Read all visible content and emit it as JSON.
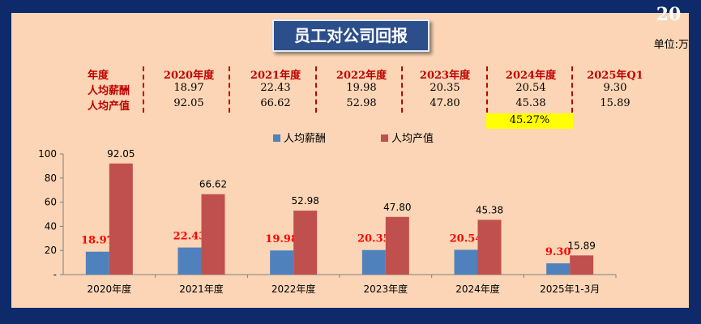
{
  "page_number": "20",
  "title": "员工对公司回报",
  "unit_label": "单位:万",
  "table": {
    "corner_label": "年度",
    "columns": [
      "2020年度",
      "2021年度",
      "2022年度",
      "2023年度",
      "2024年度",
      "2025年Q1"
    ],
    "rows": [
      {
        "label": "人均薪酬",
        "values": [
          "18.97",
          "22.43",
          "19.98",
          "20.35",
          "20.54",
          "9.30"
        ]
      },
      {
        "label": "人均产值",
        "values": [
          "92.05",
          "66.62",
          "52.98",
          "47.80",
          "45.38",
          "15.89"
        ]
      }
    ],
    "highlight_value": "45.27%"
  },
  "colors": {
    "background": "#0f2a6b",
    "panel": "#fbd5b5",
    "salary": "#4f81bd",
    "output": "#c0504d",
    "salary_label": "#ff0000",
    "highlight": "#ffff00"
  },
  "chart_data": {
    "type": "bar",
    "categories": [
      "2020年度",
      "2021年度",
      "2022年度",
      "2023年度",
      "2024年度",
      "2025年1-3月"
    ],
    "series": [
      {
        "name": "人均薪酬",
        "values": [
          18.97,
          22.43,
          19.98,
          20.35,
          20.54,
          9.3
        ],
        "labels": [
          "18.97",
          "22.43",
          "19.98",
          "20.35",
          "20.54",
          "9.30"
        ]
      },
      {
        "name": "人均产值",
        "values": [
          92.05,
          66.62,
          52.98,
          47.8,
          45.38,
          15.89
        ],
        "labels": [
          "92.05",
          "66.62",
          "52.98",
          "47.80",
          "45.38",
          "15.89"
        ]
      }
    ],
    "y_ticks": [
      "-",
      "20",
      "40",
      "60",
      "80",
      "100"
    ],
    "ylim": [
      0,
      100
    ],
    "legend_position": "top-center",
    "grid": false
  }
}
